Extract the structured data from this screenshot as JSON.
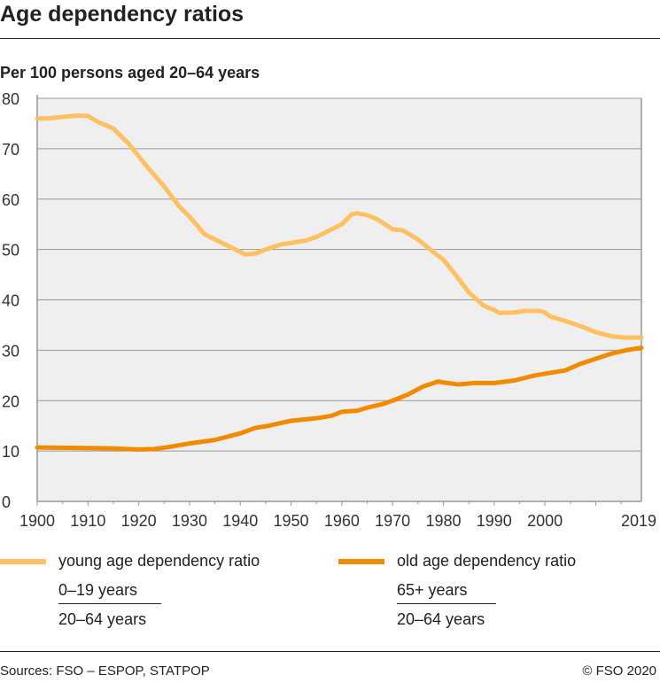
{
  "title": "Age dependency ratios",
  "subtitle": "Per 100 persons aged 20–64 years",
  "chart_data": {
    "type": "line",
    "title": "Age dependency ratios",
    "ylabel": "Per 100 persons aged 20–64 years",
    "xlim": [
      1900,
      2019
    ],
    "ylim": [
      0,
      80
    ],
    "yticks": [
      "0",
      "10",
      "20",
      "30",
      "40",
      "50",
      "60",
      "70",
      "80"
    ],
    "xticks": [
      "1900",
      "1910",
      "1920",
      "1930",
      "1940",
      "1950",
      "1960",
      "1970",
      "1980",
      "1990",
      "2000",
      "2019"
    ],
    "grid": true,
    "legend": "bottom",
    "series": [
      {
        "name": "young age dependency ratio",
        "color": "#fdc162",
        "points": [
          [
            1900,
            76
          ],
          [
            1902,
            76
          ],
          [
            1905,
            76.3
          ],
          [
            1908,
            76.6
          ],
          [
            1910,
            76.5
          ],
          [
            1912,
            75.3
          ],
          [
            1915,
            74
          ],
          [
            1918,
            71
          ],
          [
            1920,
            68.5
          ],
          [
            1922,
            66
          ],
          [
            1925,
            62.5
          ],
          [
            1928,
            58.5
          ],
          [
            1930,
            56.5
          ],
          [
            1933,
            53
          ],
          [
            1935,
            52
          ],
          [
            1938,
            50.5
          ],
          [
            1940,
            49.5
          ],
          [
            1941,
            49
          ],
          [
            1943,
            49.2
          ],
          [
            1945,
            50
          ],
          [
            1948,
            51
          ],
          [
            1950,
            51.3
          ],
          [
            1953,
            51.8
          ],
          [
            1955,
            52.5
          ],
          [
            1958,
            54
          ],
          [
            1960,
            55
          ],
          [
            1962,
            57
          ],
          [
            1963,
            57.2
          ],
          [
            1965,
            56.8
          ],
          [
            1967,
            56
          ],
          [
            1970,
            54
          ],
          [
            1972,
            53.8
          ],
          [
            1975,
            52
          ],
          [
            1978,
            49.5
          ],
          [
            1980,
            48
          ],
          [
            1982,
            45.5
          ],
          [
            1985,
            41.5
          ],
          [
            1988,
            38.8
          ],
          [
            1990,
            38
          ],
          [
            1991,
            37.4
          ],
          [
            1994,
            37.5
          ],
          [
            1996,
            37.8
          ],
          [
            1999,
            37.8
          ],
          [
            2000,
            37.5
          ],
          [
            2001,
            36.7
          ],
          [
            2004,
            35.8
          ],
          [
            2007,
            34.8
          ],
          [
            2010,
            33.6
          ],
          [
            2013,
            32.8
          ],
          [
            2016,
            32.5
          ],
          [
            2019,
            32.5
          ]
        ]
      },
      {
        "name": "old age dependency ratio",
        "color": "#f28a00",
        "points": [
          [
            1900,
            10.7
          ],
          [
            1910,
            10.6
          ],
          [
            1915,
            10.5
          ],
          [
            1920,
            10.3
          ],
          [
            1923,
            10.4
          ],
          [
            1926,
            10.8
          ],
          [
            1930,
            11.5
          ],
          [
            1935,
            12.2
          ],
          [
            1940,
            13.5
          ],
          [
            1943,
            14.6
          ],
          [
            1945,
            14.9
          ],
          [
            1950,
            16
          ],
          [
            1955,
            16.5
          ],
          [
            1958,
            17
          ],
          [
            1960,
            17.8
          ],
          [
            1963,
            18
          ],
          [
            1965,
            18.6
          ],
          [
            1968,
            19.3
          ],
          [
            1970,
            20
          ],
          [
            1973,
            21.2
          ],
          [
            1976,
            22.8
          ],
          [
            1979,
            23.8
          ],
          [
            1980,
            23.6
          ],
          [
            1983,
            23.2
          ],
          [
            1986,
            23.5
          ],
          [
            1990,
            23.5
          ],
          [
            1994,
            24
          ],
          [
            1998,
            25
          ],
          [
            2001,
            25.5
          ],
          [
            2004,
            26
          ],
          [
            2007,
            27.3
          ],
          [
            2010,
            28.3
          ],
          [
            2013,
            29.3
          ],
          [
            2016,
            30
          ],
          [
            2019,
            30.5
          ]
        ]
      }
    ]
  },
  "legend": {
    "young": {
      "label": "young age dependency ratio",
      "numerator": "0–19 years",
      "denominator": "20–64 years"
    },
    "old": {
      "label": "old age dependency ratio",
      "numerator": "65+ years",
      "denominator": "20–64 years"
    }
  },
  "footer": {
    "sources": "Sources: FSO – ESPOP, STATPOP",
    "copyright": "© FSO 2020"
  }
}
